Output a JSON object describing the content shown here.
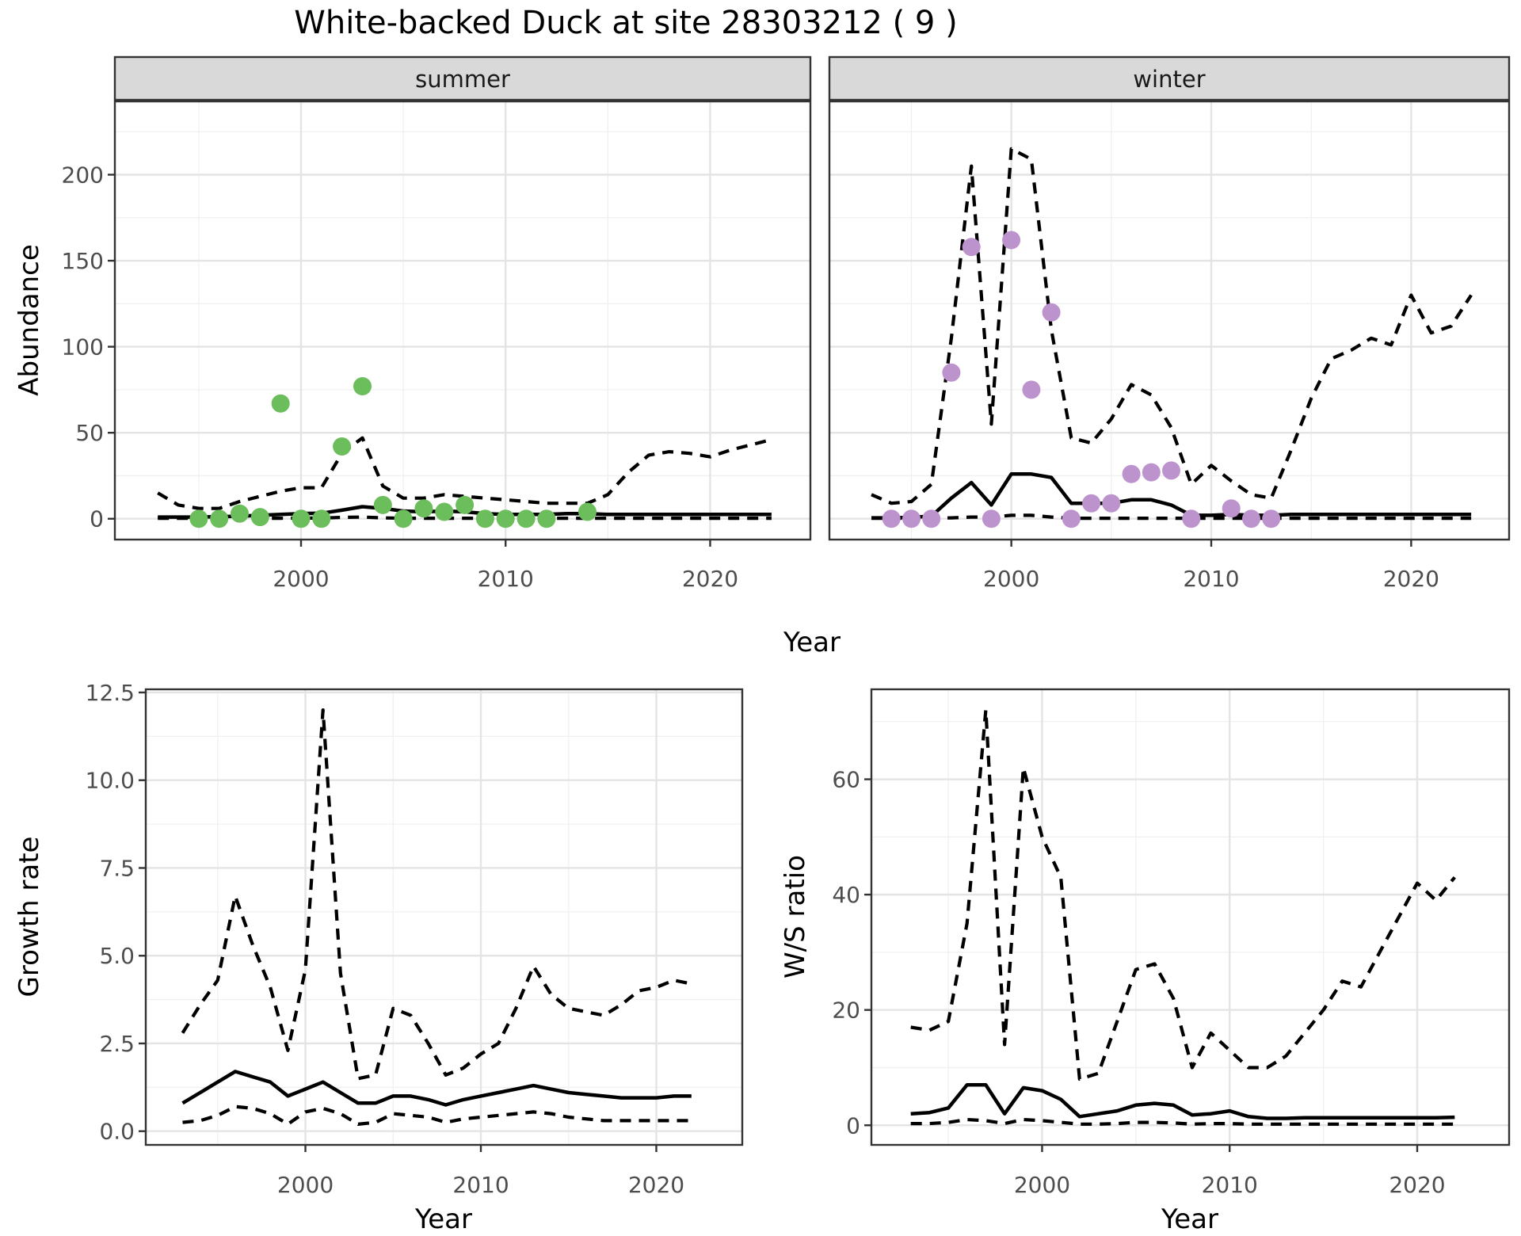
{
  "chart_data": {
    "type": "line",
    "title": "White-backed Duck at site 28303212 ( 9 )",
    "top_xlabel": "Year",
    "x_ticks": [
      2000,
      2010,
      2020
    ],
    "x_tick_labels": [
      "2000",
      "2010",
      "2020"
    ],
    "x_minor": [
      1995,
      2005,
      2015
    ],
    "x_domain": [
      1990.9,
      2024.9
    ],
    "legend": "none",
    "grid": "on",
    "colors": {
      "line": "#000000",
      "strip_bg": "#d9d9d9",
      "summer_points": "#6cbd5b",
      "winter_points": "#bd93ce"
    },
    "panels": [
      {
        "id": "abundance_summer",
        "strip_label": "summer",
        "ylabel": "Abundance",
        "xlabel": null,
        "y_domain": [
          -12.1,
          242.6
        ],
        "y_ticks": [
          0,
          50,
          100,
          150,
          200
        ],
        "y_tick_labels": [
          "0",
          "50",
          "100",
          "150",
          "200"
        ],
        "y_minor": [
          25,
          75,
          125,
          175,
          225
        ],
        "x": [
          1993,
          1994,
          1995,
          1996,
          1997,
          1998,
          1999,
          2000,
          2001,
          2002,
          2003,
          2004,
          2005,
          2006,
          2007,
          2008,
          2009,
          2010,
          2011,
          2012,
          2013,
          2014,
          2015,
          2016,
          2017,
          2018,
          2019,
          2020,
          2021,
          2022,
          2023
        ],
        "series": {
          "upper_ci": [
            15,
            8,
            6,
            6,
            10,
            13,
            16,
            18,
            18,
            38,
            47,
            19,
            12,
            12,
            14,
            13,
            12,
            11,
            10,
            9,
            9,
            9,
            14,
            27,
            37,
            39,
            38,
            36,
            40,
            43,
            46
          ],
          "fit": [
            1,
            1,
            1,
            1.2,
            1.5,
            2,
            2.5,
            3,
            3.2,
            5,
            7,
            6,
            4.5,
            4,
            4.5,
            4,
            3,
            2.5,
            2.5,
            2.5,
            3,
            3,
            2.5,
            2.5,
            2.5,
            2.5,
            2.5,
            2.5,
            2.5,
            2.5,
            2.5
          ],
          "lower_ci": [
            0.3,
            0.3,
            0.3,
            0.3,
            0.3,
            0.3,
            0.3,
            0.4,
            0.4,
            0.8,
            1,
            0.5,
            0.3,
            0.3,
            0.3,
            0.3,
            0.3,
            0.3,
            0.3,
            0.3,
            0.3,
            0.3,
            0.3,
            0.3,
            0.3,
            0.3,
            0.3,
            0.3,
            0.3,
            0.3,
            0.3
          ]
        },
        "points": {
          "label": "observed-summer-counts",
          "color_key": "summer_points",
          "x": [
            1995,
            1996,
            1997,
            1998,
            1999,
            2000,
            2001,
            2002,
            2003,
            2004,
            2005,
            2006,
            2007,
            2008,
            2009,
            2010,
            2011,
            2012,
            2014
          ],
          "y": [
            0,
            0,
            3,
            1,
            67,
            0,
            0,
            42,
            77,
            8,
            0,
            6,
            4,
            8,
            0,
            0,
            0,
            0,
            4
          ]
        }
      },
      {
        "id": "abundance_winter",
        "strip_label": "winter",
        "ylabel": null,
        "xlabel": null,
        "y_domain": [
          -12.1,
          242.6
        ],
        "y_ticks": [
          0,
          50,
          100,
          150,
          200
        ],
        "y_tick_labels": [],
        "y_minor": [
          25,
          75,
          125,
          175,
          225
        ],
        "x": [
          1993,
          1994,
          1995,
          1996,
          1997,
          1998,
          1999,
          2000,
          2001,
          2002,
          2003,
          2004,
          2005,
          2006,
          2007,
          2008,
          2009,
          2010,
          2011,
          2012,
          2013,
          2014,
          2015,
          2016,
          2017,
          2018,
          2019,
          2020,
          2021,
          2022,
          2023
        ],
        "series": {
          "upper_ci": [
            14,
            9,
            10,
            20,
            105,
            205,
            55,
            215,
            209,
            110,
            47,
            44,
            58,
            78,
            72,
            53,
            20,
            31,
            22,
            14,
            12,
            40,
            70,
            93,
            98,
            105,
            101,
            130,
            108,
            112,
            130
          ],
          "fit": [
            0.5,
            0.5,
            0.8,
            1.5,
            12,
            21,
            8,
            26,
            26,
            24,
            9,
            9,
            9,
            11,
            11,
            8,
            2,
            2,
            2.5,
            2,
            2,
            2.5,
            2.5,
            2.5,
            2.5,
            2.5,
            2.5,
            2.5,
            2.5,
            2.5,
            2.5
          ],
          "lower_ci": [
            0.3,
            0.3,
            0.3,
            0.3,
            0.5,
            1,
            1,
            2,
            2,
            1,
            0.3,
            0.3,
            0.3,
            0.3,
            0.3,
            0.3,
            0.3,
            0.3,
            0.3,
            0.3,
            0.3,
            0.3,
            0.3,
            0.3,
            0.3,
            0.3,
            0.3,
            0.3,
            0.3,
            0.3,
            0.3
          ]
        },
        "points": {
          "label": "observed-winter-counts",
          "color_key": "winter_points",
          "x": [
            1994,
            1995,
            1996,
            1997,
            1998,
            1999,
            2000,
            2001,
            2002,
            2003,
            2004,
            2005,
            2006,
            2007,
            2008,
            2009,
            2011,
            2012,
            2013
          ],
          "y": [
            0,
            0,
            0,
            85,
            158,
            0,
            162,
            75,
            120,
            0,
            9,
            9,
            26,
            27,
            28,
            0,
            6,
            0,
            0
          ]
        }
      },
      {
        "id": "growth_rate",
        "strip_label": null,
        "ylabel": "Growth rate",
        "xlabel": "Year",
        "y_domain": [
          -0.39,
          12.59
        ],
        "y_ticks": [
          0,
          2.5,
          5,
          7.5,
          10,
          12.5
        ],
        "y_tick_labels": [
          "0.0",
          "2.5",
          "5.0",
          "7.5",
          "10.0",
          "12.5"
        ],
        "y_minor": [
          1.25,
          3.75,
          6.25,
          8.75,
          11.25
        ],
        "x": [
          1993,
          1994,
          1995,
          1996,
          1997,
          1998,
          1999,
          2000,
          2001,
          2002,
          2003,
          2004,
          2005,
          2006,
          2007,
          2008,
          2009,
          2010,
          2011,
          2012,
          2013,
          2014,
          2015,
          2016,
          2017,
          2018,
          2019,
          2020,
          2021,
          2022
        ],
        "series": {
          "upper_ci": [
            2.8,
            3.6,
            4.3,
            6.7,
            5.3,
            4.1,
            2.3,
            4.6,
            12,
            4.5,
            1.5,
            1.6,
            3.5,
            3.3,
            2.5,
            1.6,
            1.8,
            2.2,
            2.5,
            3.5,
            4.7,
            3.9,
            3.5,
            3.4,
            3.3,
            3.6,
            4,
            4.1,
            4.3,
            4.2
          ],
          "fit": [
            0.8,
            1.1,
            1.4,
            1.7,
            1.55,
            1.4,
            1,
            1.2,
            1.4,
            1.1,
            0.8,
            0.8,
            1,
            1,
            0.9,
            0.75,
            0.9,
            1,
            1.1,
            1.2,
            1.3,
            1.2,
            1.1,
            1.05,
            1,
            0.95,
            0.95,
            0.95,
            1,
            1
          ],
          "lower_ci": [
            0.25,
            0.3,
            0.45,
            0.7,
            0.65,
            0.5,
            0.2,
            0.55,
            0.65,
            0.5,
            0.2,
            0.25,
            0.5,
            0.45,
            0.4,
            0.25,
            0.35,
            0.4,
            0.45,
            0.5,
            0.55,
            0.5,
            0.4,
            0.35,
            0.3,
            0.3,
            0.3,
            0.3,
            0.3,
            0.3
          ]
        },
        "points": null
      },
      {
        "id": "ws_ratio",
        "strip_label": null,
        "ylabel": "W/S ratio",
        "xlabel": "Year",
        "y_domain": [
          -3.4,
          75.6
        ],
        "y_ticks": [
          0,
          20,
          40,
          60
        ],
        "y_tick_labels": [
          "0",
          "20",
          "40",
          "60"
        ],
        "y_minor": [
          10,
          30,
          50,
          70
        ],
        "x": [
          1993,
          1994,
          1995,
          1996,
          1997,
          1998,
          1999,
          2000,
          2001,
          2002,
          2003,
          2004,
          2005,
          2006,
          2007,
          2008,
          2009,
          2010,
          2011,
          2012,
          2013,
          2014,
          2015,
          2016,
          2017,
          2018,
          2019,
          2020,
          2021,
          2022
        ],
        "series": {
          "upper_ci": [
            17,
            16.5,
            18,
            35,
            72,
            14,
            62,
            50,
            43,
            8,
            9,
            18,
            27,
            28,
            22,
            10,
            16,
            13,
            10,
            10,
            12,
            16,
            20,
            25,
            24,
            30,
            36,
            42,
            39,
            43
          ],
          "fit": [
            2,
            2.2,
            3,
            7,
            7,
            2,
            6.5,
            6,
            4.5,
            1.5,
            2,
            2.5,
            3.5,
            3.8,
            3.5,
            1.8,
            2,
            2.5,
            1.5,
            1.2,
            1.2,
            1.3,
            1.3,
            1.3,
            1.3,
            1.3,
            1.3,
            1.3,
            1.3,
            1.4
          ],
          "lower_ci": [
            0.3,
            0.3,
            0.5,
            1,
            0.8,
            0.3,
            1,
            0.8,
            0.5,
            0.2,
            0.2,
            0.3,
            0.5,
            0.5,
            0.4,
            0.2,
            0.3,
            0.3,
            0.2,
            0.2,
            0.2,
            0.2,
            0.2,
            0.2,
            0.2,
            0.2,
            0.2,
            0.2,
            0.2,
            0.2
          ]
        },
        "points": null
      }
    ]
  }
}
